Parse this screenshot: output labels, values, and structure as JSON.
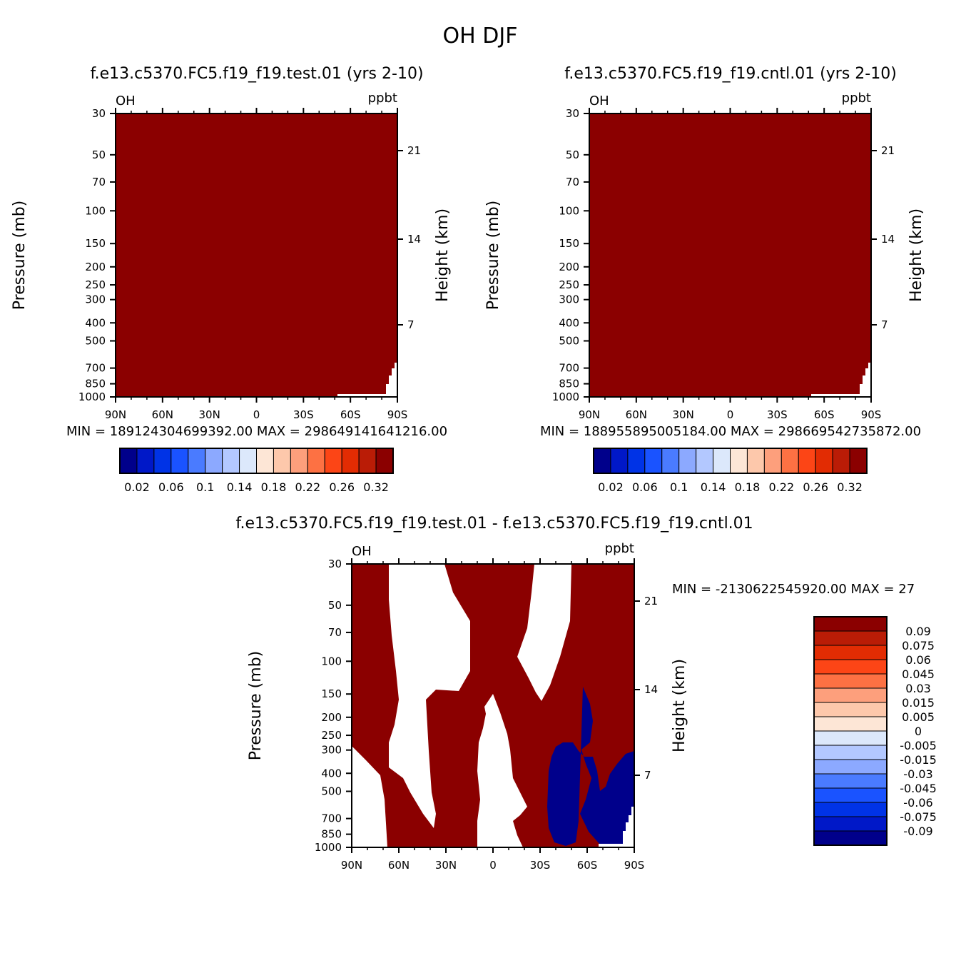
{
  "title": "OH DJF",
  "colors": {
    "fill_max": "#8b0000",
    "fill_min": "#00008b",
    "background": "#ffffff"
  },
  "chart_data": [
    {
      "type": "heatmap",
      "panel": "test",
      "title": "f.e13.c5370.FC5.f19_f19.test.01 (yrs 2-10)",
      "corner_left": "OH",
      "corner_right": "ppbt",
      "ylabel": "Pressure (mb)",
      "ylabel_right": "Height (km)",
      "xticks": [
        "90N",
        "60N",
        "30N",
        "0",
        "30S",
        "60S",
        "90S"
      ],
      "xtick_values": [
        90,
        60,
        30,
        0,
        -30,
        -60,
        -90
      ],
      "xlim": [
        90,
        -90
      ],
      "ylim": [
        1000,
        30
      ],
      "ylog": true,
      "yticks": [
        "30",
        "50",
        "70",
        "100",
        "150",
        "200",
        "250",
        "300",
        "400",
        "500",
        "700",
        "850",
        "1000"
      ],
      "ytick_values": [
        30,
        50,
        70,
        100,
        150,
        200,
        250,
        300,
        400,
        500,
        700,
        850,
        1000
      ],
      "yticks_right": [
        "21",
        "14",
        "7"
      ],
      "min_label": "MIN = 189124304699392.00",
      "max_label": "MAX = 298649141641216.00",
      "colorbar": {
        "orientation": "horizontal",
        "labels": [
          "0.02",
          "0.06",
          "0.1",
          "0.14",
          "0.18",
          "0.22",
          "0.26",
          "0.32"
        ],
        "colors": [
          "#00008b",
          "#0018c8",
          "#0033e6",
          "#1a53ff",
          "#4a7bff",
          "#8ca9ff",
          "#b3c8ff",
          "#dce8fb",
          "#fde6d6",
          "#fdc8ab",
          "#fd9f7c",
          "#fd7143",
          "#fc4516",
          "#e22c03",
          "#ba1c06",
          "#8b0000"
        ]
      },
      "field": "filled everywhere with highest class except a small empty patch near 90S below 700 mb"
    },
    {
      "type": "heatmap",
      "panel": "cntl",
      "title": "f.e13.c5370.FC5.f19_f19.cntl.01 (yrs 2-10)",
      "corner_left": "OH",
      "corner_right": "ppbt",
      "ylabel": "Pressure (mb)",
      "ylabel_right": "Height (km)",
      "xticks": [
        "90N",
        "60N",
        "30N",
        "0",
        "30S",
        "60S",
        "90S"
      ],
      "xtick_values": [
        90,
        60,
        30,
        0,
        -30,
        -60,
        -90
      ],
      "xlim": [
        90,
        -90
      ],
      "ylim": [
        1000,
        30
      ],
      "ylog": true,
      "yticks": [
        "30",
        "50",
        "70",
        "100",
        "150",
        "200",
        "250",
        "300",
        "400",
        "500",
        "700",
        "850",
        "1000"
      ],
      "ytick_values": [
        30,
        50,
        70,
        100,
        150,
        200,
        250,
        300,
        400,
        500,
        700,
        850,
        1000
      ],
      "yticks_right": [
        "21",
        "14",
        "7"
      ],
      "min_label": "MIN = 188955895005184.00",
      "max_label": "MAX = 298669542735872.00",
      "colorbar": {
        "orientation": "horizontal",
        "labels": [
          "0.02",
          "0.06",
          "0.1",
          "0.14",
          "0.18",
          "0.22",
          "0.26",
          "0.32"
        ],
        "colors": [
          "#00008b",
          "#0018c8",
          "#0033e6",
          "#1a53ff",
          "#4a7bff",
          "#8ca9ff",
          "#b3c8ff",
          "#dce8fb",
          "#fde6d6",
          "#fdc8ab",
          "#fd9f7c",
          "#fd7143",
          "#fc4516",
          "#e22c03",
          "#ba1c06",
          "#8b0000"
        ]
      }
    },
    {
      "type": "heatmap",
      "panel": "diff",
      "title": "f.e13.c5370.FC5.f19_f19.test.01 - f.e13.c5370.FC5.f19_f19.cntl.01",
      "corner_left": "OH",
      "corner_right": "ppbt",
      "ylabel": "Pressure (mb)",
      "ylabel_right": "Height (km)",
      "xticks": [
        "90N",
        "60N",
        "30N",
        "0",
        "30S",
        "60S",
        "90S"
      ],
      "xtick_values": [
        90,
        60,
        30,
        0,
        -30,
        -60,
        -90
      ],
      "xlim": [
        90,
        -90
      ],
      "ylim": [
        1000,
        30
      ],
      "ylog": true,
      "yticks": [
        "30",
        "50",
        "70",
        "100",
        "150",
        "200",
        "250",
        "300",
        "400",
        "500",
        "700",
        "850",
        "1000"
      ],
      "ytick_values": [
        30,
        50,
        70,
        100,
        150,
        200,
        250,
        300,
        400,
        500,
        700,
        850,
        1000
      ],
      "yticks_right": [
        "21",
        "14",
        "7"
      ],
      "minmax_label": "MIN = -2130622545920.00   MAX = 27",
      "colorbar": {
        "orientation": "vertical",
        "labels": [
          "0.09",
          "0.075",
          "0.06",
          "0.045",
          "0.03",
          "0.015",
          "0.005",
          "0",
          "-0.005",
          "-0.015",
          "-0.03",
          "-0.045",
          "-0.06",
          "-0.075",
          "-0.09"
        ],
        "colors": [
          "#8b0000",
          "#ba1c06",
          "#e22c03",
          "#fc4516",
          "#fd7143",
          "#fd9f7c",
          "#fdc8ab",
          "#fde6d6",
          "#dce8fb",
          "#b3c8ff",
          "#8ca9ff",
          "#4a7bff",
          "#1a53ff",
          "#0033e6",
          "#0018c8",
          "#00008b"
        ]
      }
    }
  ]
}
